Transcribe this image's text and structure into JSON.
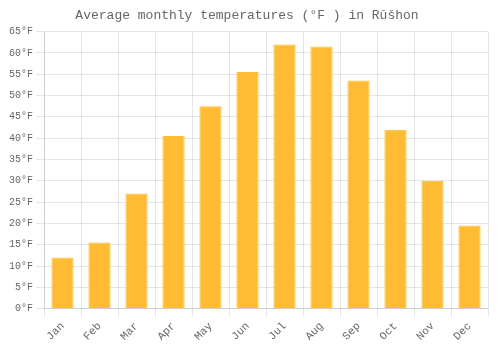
{
  "chart_data": {
    "type": "bar",
    "title": "Average monthly temperatures (°F ) in Rŭšhon",
    "categories": [
      "Jan",
      "Feb",
      "Mar",
      "Apr",
      "May",
      "Jun",
      "Jul",
      "Aug",
      "Sep",
      "Oct",
      "Nov",
      "Dec"
    ],
    "values": [
      12,
      15.5,
      27,
      40.5,
      47.5,
      55.5,
      62,
      61.5,
      53.5,
      42,
      30,
      19.5
    ],
    "color": "#FFBB33",
    "ylim": [
      0,
      65
    ],
    "yticks": [
      {
        "value": 0,
        "label": "0°F"
      },
      {
        "value": 5,
        "label": "5°F"
      },
      {
        "value": 10,
        "label": "10°F"
      },
      {
        "value": 15,
        "label": "15°F"
      },
      {
        "value": 20,
        "label": "20°F"
      },
      {
        "value": 25,
        "label": "25°F"
      },
      {
        "value": 30,
        "label": "30°F"
      },
      {
        "value": 35,
        "label": "35°F"
      },
      {
        "value": 40,
        "label": "40°F"
      },
      {
        "value": 45,
        "label": "45°F"
      },
      {
        "value": 50,
        "label": "50°F"
      },
      {
        "value": 55,
        "label": "55°F"
      },
      {
        "value": 60,
        "label": "60°F"
      },
      {
        "value": 65,
        "label": "65°F"
      }
    ],
    "grid": true
  }
}
